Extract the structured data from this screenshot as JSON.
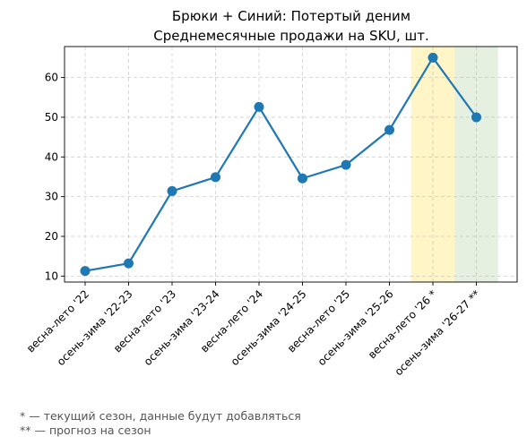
{
  "chart_data": {
    "type": "line",
    "title": [
      "Брюки + Синий: Потертый деним",
      "Среднемесячные продажи на SKU, шт."
    ],
    "xlabel": "",
    "ylabel": "",
    "categories": [
      "весна-лето '22",
      "осень-зима '22-23",
      "весна-лето '23",
      "осень-зима '23-24",
      "весна-лето '24",
      "осень-зима '24-25",
      "весна-лето '25",
      "осень-зима '25-26",
      "весна-лето '26 *",
      "осень-зима '26-27 **"
    ],
    "series": [
      {
        "values": [
          11.3,
          13.2,
          31.4,
          34.9,
          52.6,
          34.6,
          38.0,
          46.8,
          65.0,
          50.0
        ],
        "color": "#1f77b4"
      }
    ],
    "ylim": [
      8.5,
      67.8
    ],
    "yticks": [
      10,
      20,
      30,
      40,
      50,
      60
    ],
    "grid": true,
    "highlight_bands": [
      {
        "category_index": 8,
        "color": "#fff2b3",
        "meaning": "current season"
      },
      {
        "category_index": 9,
        "color": "#dcebd6",
        "meaning": "forecast"
      }
    ]
  },
  "footnotes": [
    "* — текущий сезон, данные будут добавляться",
    "** — прогноз на сезон"
  ]
}
